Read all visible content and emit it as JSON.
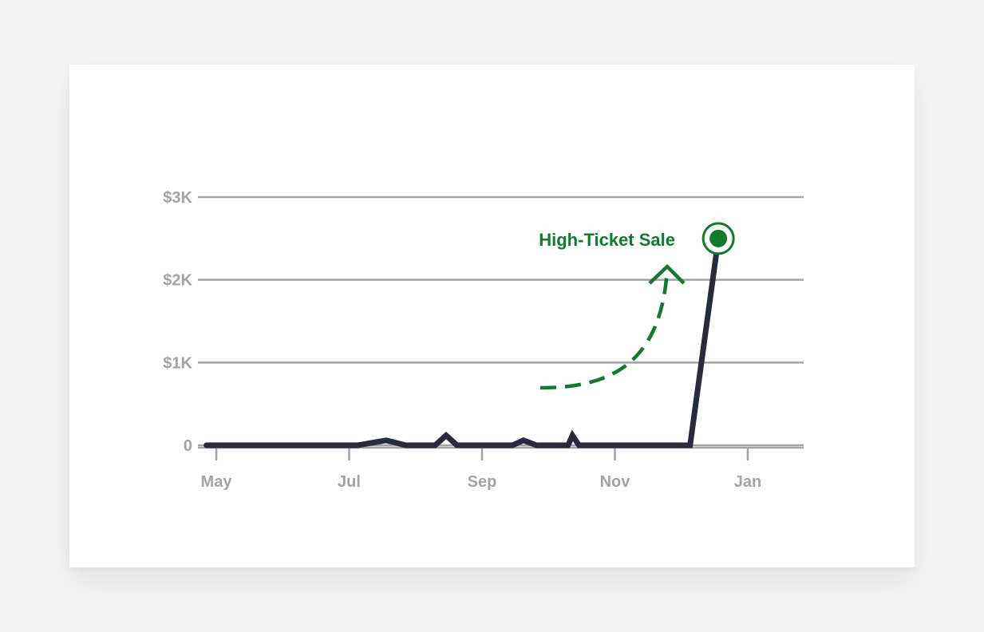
{
  "chart_data": {
    "type": "line",
    "x_tick_labels": [
      "May",
      "Jul",
      "Sep",
      "Nov",
      "Jan"
    ],
    "y_tick_labels": [
      "0",
      "$1K",
      "$2K",
      "$3K"
    ],
    "y_tick_values": [
      0,
      1000,
      2000,
      3000
    ],
    "ylim": [
      0,
      3000
    ],
    "grid": true,
    "series": [
      {
        "color": "#262b3d",
        "points": [
          {
            "x": "2023-04-27",
            "y": 0
          },
          {
            "x": "2023-07-05",
            "y": 0
          },
          {
            "x": "2023-07-18",
            "y": 60
          },
          {
            "x": "2023-07-27",
            "y": 0
          },
          {
            "x": "2023-08-10",
            "y": 0
          },
          {
            "x": "2023-08-15",
            "y": 120
          },
          {
            "x": "2023-08-20",
            "y": 0
          },
          {
            "x": "2023-09-15",
            "y": 0
          },
          {
            "x": "2023-09-20",
            "y": 60
          },
          {
            "x": "2023-09-26",
            "y": 0
          },
          {
            "x": "2023-10-10",
            "y": 0
          },
          {
            "x": "2023-10-12",
            "y": 120
          },
          {
            "x": "2023-10-15",
            "y": 0
          },
          {
            "x": "2023-12-05",
            "y": 0
          },
          {
            "x": "2023-12-18",
            "y": 2500
          }
        ]
      }
    ],
    "highlight": {
      "x": "2023-12-18",
      "y": 2500,
      "color": "#117a2b"
    },
    "annotation": {
      "text": "High-Ticket Sale",
      "color": "#117a2b"
    }
  }
}
